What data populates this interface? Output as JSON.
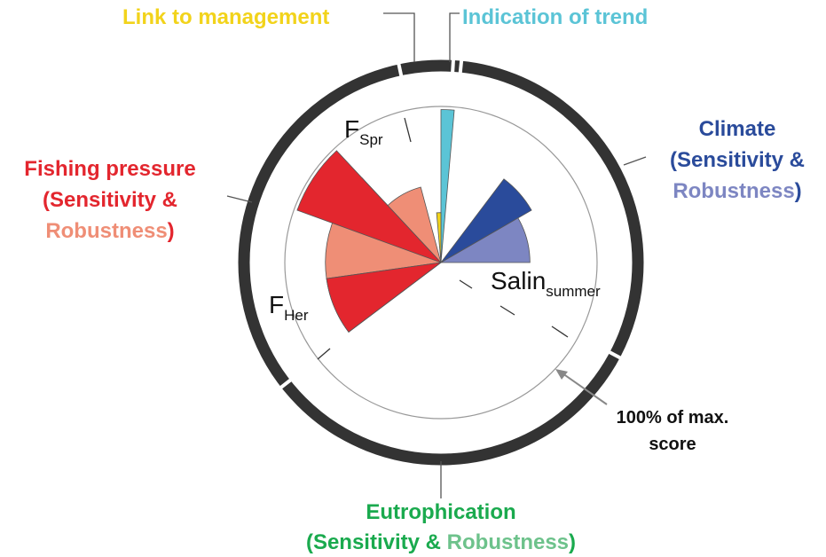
{
  "labels": {
    "link_to_management": "Link to management",
    "indication_of_trend": "Indication of trend",
    "climate": {
      "title": "Climate",
      "line2": "(Sensitivity &",
      "robustness": "Robustness",
      "close": ")"
    },
    "fishing": {
      "title": "Fishing pressure",
      "line2": "(Sensitivity &",
      "robustness": "Robustness",
      "close": ")"
    },
    "eutrophication": {
      "title": "Eutrophication",
      "open": "(Sensitivity &",
      "robustness": "Robustness",
      "close": ")"
    },
    "note": {
      "line1": "100% of max.",
      "line2": "score"
    }
  },
  "indicators": {
    "f_spr": {
      "main": "F",
      "sub": "Spr"
    },
    "f_her": {
      "main": "F",
      "sub": "Her"
    },
    "salin": {
      "main": "Salin",
      "sub": "summer"
    }
  },
  "wedges": [
    {
      "color": "#5bc4d6",
      "value": 98
    },
    {
      "color": "#f2d31b",
      "value": 32
    },
    {
      "color": "#2a4b9b",
      "value": 67
    },
    {
      "color": "#7d86c2",
      "value": 57
    },
    {
      "color": "#ef8e76",
      "value": 74
    },
    {
      "color": "#ef8e76",
      "value": 74
    },
    {
      "color": "#ef8e76",
      "value": 50
    },
    {
      "color": "#e3262e",
      "value": 98
    },
    {
      "color": "#e3262e",
      "value": 74
    }
  ]
}
